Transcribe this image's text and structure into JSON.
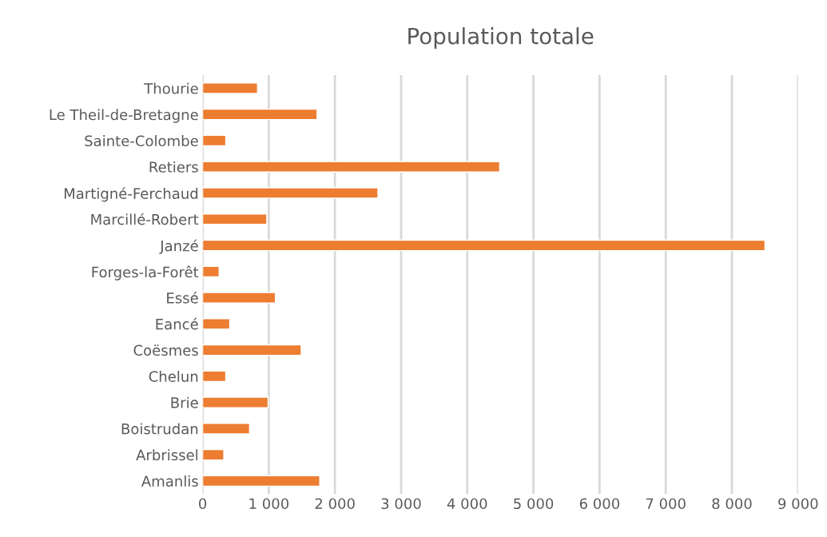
{
  "chart_data": {
    "type": "bar",
    "orientation": "horizontal",
    "title": "Population totale",
    "categories": [
      "Thourie",
      "Le Theil-de-Bretagne",
      "Sainte-Colombe",
      "Retiers",
      "Martigné-Ferchaud",
      "Marcillé-Robert",
      "Janzé",
      "Forges-la-Forêt",
      "Essé",
      "Eancé",
      "Coësmes",
      "Chelun",
      "Brie",
      "Boistrudan",
      "Arbrissel",
      "Amanlis"
    ],
    "values": [
      830,
      1730,
      350,
      4490,
      2650,
      970,
      8500,
      250,
      1100,
      410,
      1490,
      350,
      990,
      710,
      320,
      1770
    ],
    "color": "#ed7d31",
    "xlim": [
      0,
      9000
    ],
    "xticks": [
      0,
      {
        "value": 1000,
        "label": "1 000"
      },
      {
        "value": 2000,
        "label": "2 000"
      },
      {
        "value": 3000,
        "label": "3 000"
      },
      {
        "value": 4000,
        "label": "4 000"
      },
      {
        "value": 5000,
        "label": "5 000"
      },
      {
        "value": 6000,
        "label": "6 000"
      },
      {
        "value": 7000,
        "label": "7 000"
      },
      {
        "value": 8000,
        "label": "8 000"
      },
      {
        "value": 9000,
        "label": "9 000"
      }
    ],
    "grid": "x"
  }
}
